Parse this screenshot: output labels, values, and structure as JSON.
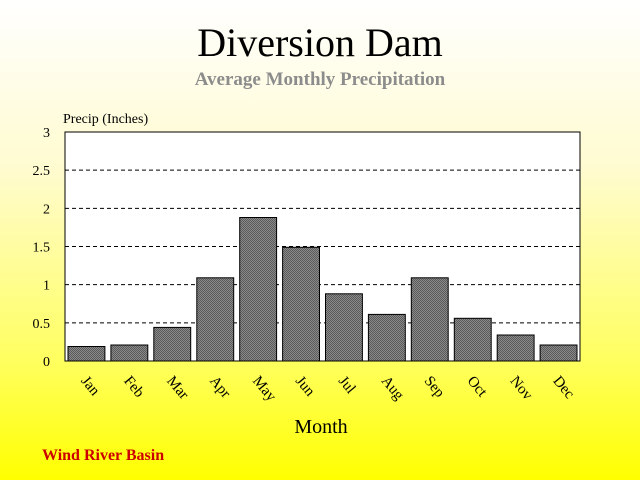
{
  "chart_data": {
    "type": "bar",
    "title": "Diversion Dam",
    "subtitle": "Average Monthly Precipitation",
    "ylabel": "Precip (Inches)",
    "xlabel": "Month",
    "categories": [
      "Jan",
      "Feb",
      "Mar",
      "Apr",
      "May",
      "Jun",
      "Jul",
      "Aug",
      "Sep",
      "Oct",
      "Nov",
      "Dec"
    ],
    "values": [
      0.19,
      0.21,
      0.44,
      1.09,
      1.88,
      1.49,
      0.88,
      0.61,
      1.09,
      0.56,
      0.34,
      0.21
    ],
    "ylim": [
      0,
      3
    ],
    "yticks": [
      "0",
      "0.5",
      "1",
      "1.5",
      "2",
      "2.5",
      "3"
    ],
    "grid": true,
    "legend": "none",
    "bar_color": "#7a7a7a",
    "note": "Wind River Basin"
  }
}
